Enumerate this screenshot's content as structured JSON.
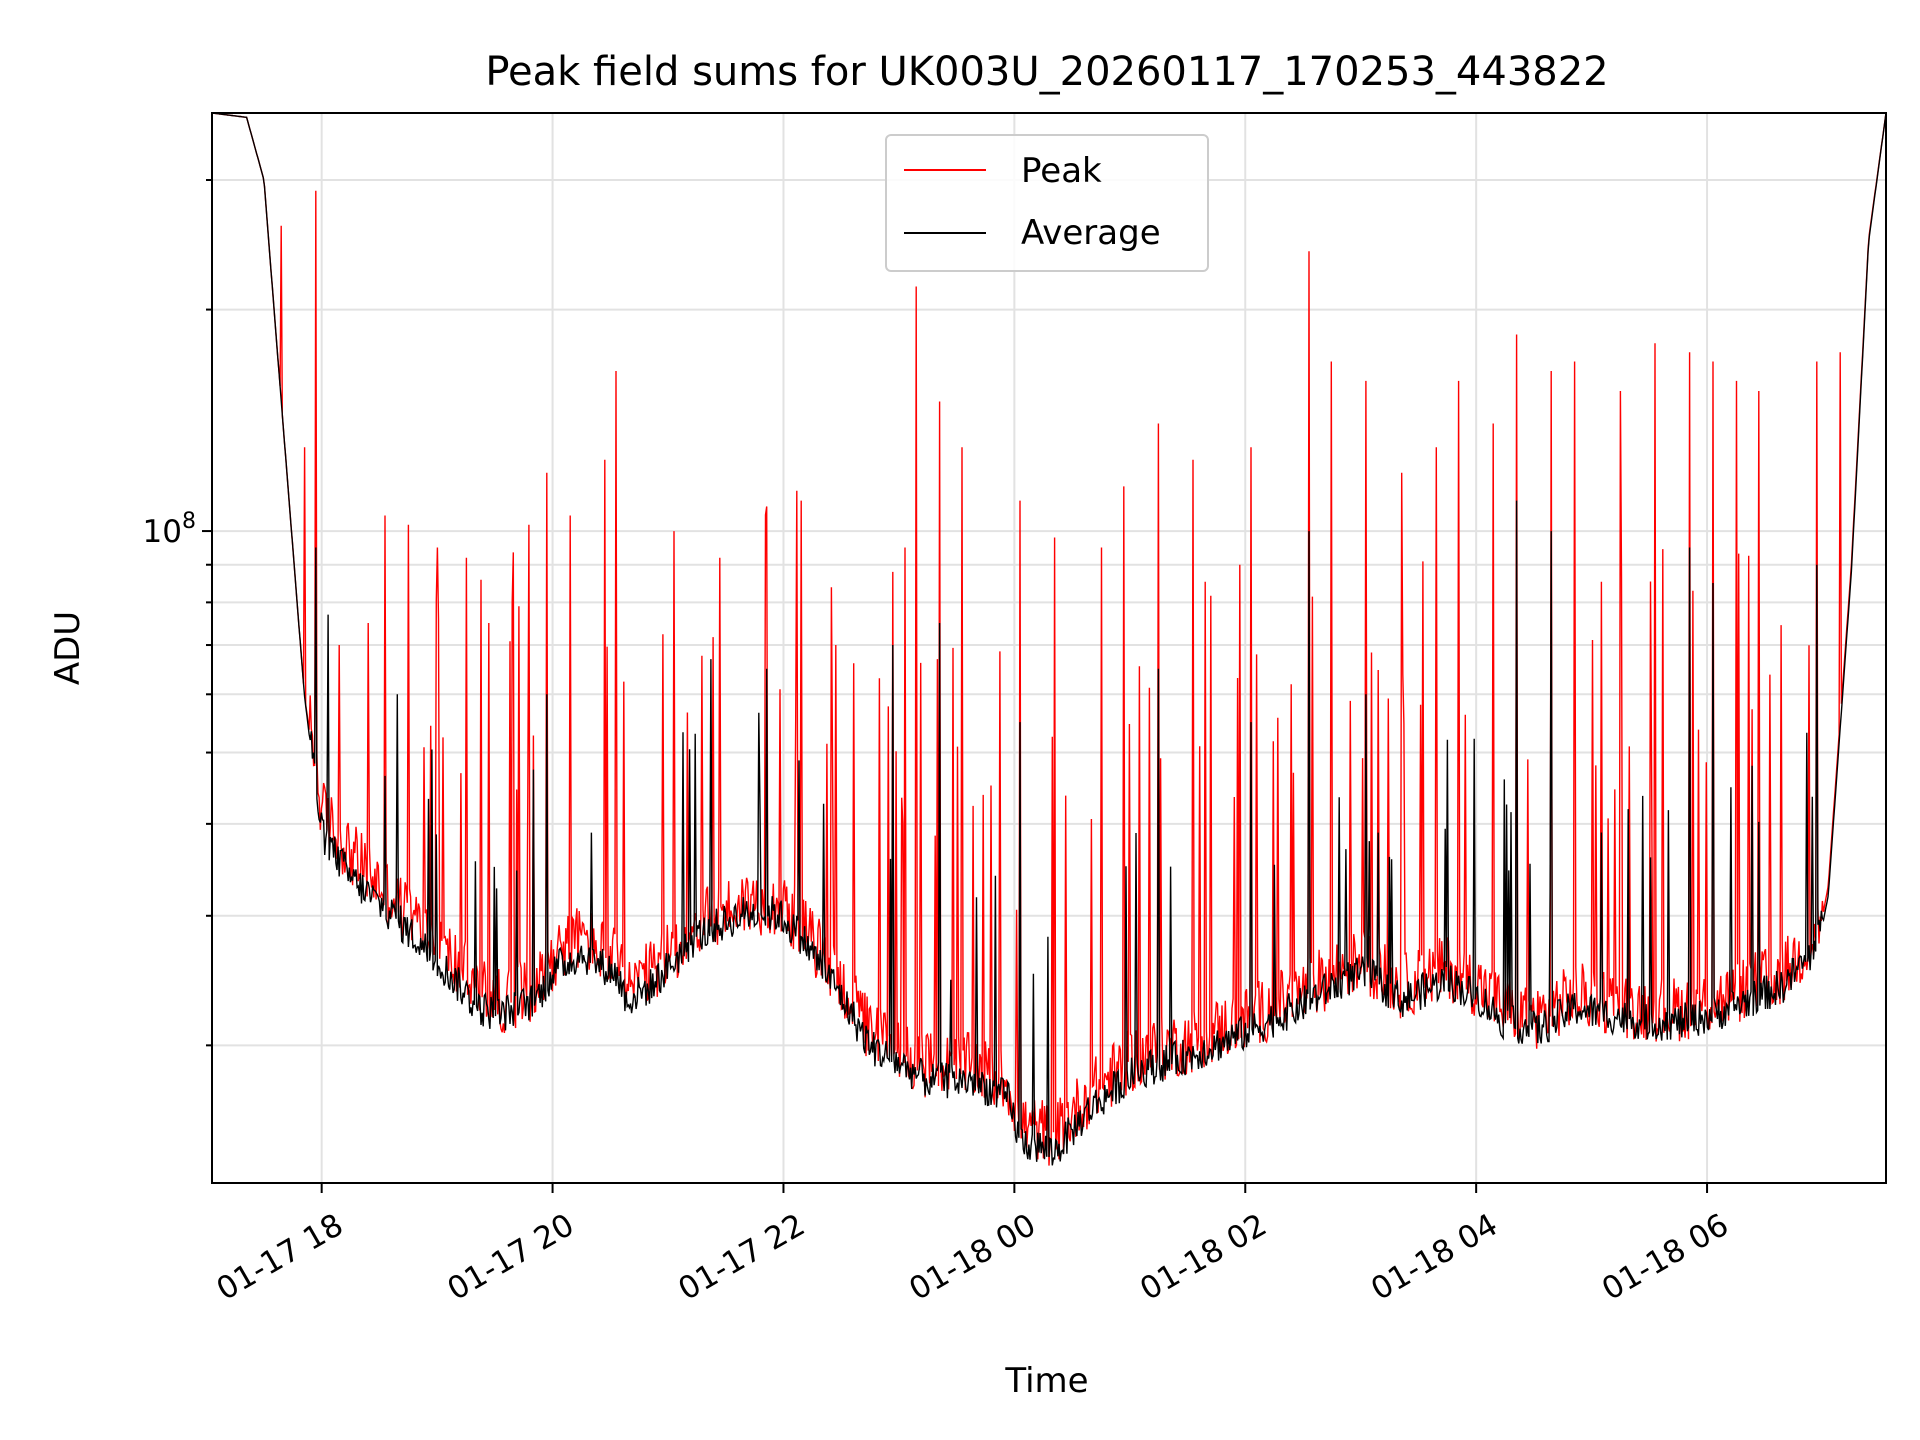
{
  "chart_data": {
    "type": "line",
    "title": "Peak field sums for UK003U_20260117_170253_443822",
    "xlabel": "Time",
    "ylabel": "ADU",
    "yscale": "log",
    "ylim": [
      13000000,
      370000000
    ],
    "xlim_hours": [
      0,
      14.5
    ],
    "x_ticks": [
      {
        "label": "01-17 18",
        "hour": 0.95
      },
      {
        "label": "01-17 20",
        "hour": 2.95
      },
      {
        "label": "01-17 22",
        "hour": 4.95
      },
      {
        "label": "01-18 00",
        "hour": 6.95
      },
      {
        "label": "01-18 02",
        "hour": 8.95
      },
      {
        "label": "01-18 04",
        "hour": 10.95
      },
      {
        "label": "01-18 06",
        "hour": 12.95
      }
    ],
    "y_major_ticks": [
      {
        "value": 100000000,
        "base": "10",
        "exp": "8"
      }
    ],
    "y_minor_ticks": [
      20000000,
      30000000,
      40000000,
      50000000,
      60000000,
      70000000,
      80000000,
      90000000,
      200000000,
      300000000
    ],
    "grid": true,
    "legend": {
      "position": "top-center"
    },
    "series": [
      {
        "name": "Peak",
        "color": "#ff0000",
        "baseline": [
          [
            0,
            370000000
          ],
          [
            0.3,
            365000000
          ],
          [
            0.45,
            300000000
          ],
          [
            0.6,
            150000000
          ],
          [
            0.8,
            60000000
          ],
          [
            0.95,
            40000000
          ],
          [
            1.2,
            35000000
          ],
          [
            1.6,
            30000000
          ],
          [
            2.0,
            26000000
          ],
          [
            2.3,
            23000000
          ],
          [
            2.5,
            22000000
          ],
          [
            2.8,
            23000000
          ],
          [
            3.0,
            26000000
          ],
          [
            3.2,
            27000000
          ],
          [
            3.5,
            25000000
          ],
          [
            3.6,
            23000000
          ],
          [
            3.8,
            24000000
          ],
          [
            4.2,
            28000000
          ],
          [
            4.6,
            30000000
          ],
          [
            4.9,
            30000000
          ],
          [
            5.1,
            28000000
          ],
          [
            5.4,
            24000000
          ],
          [
            5.7,
            20000000
          ],
          [
            6.2,
            18000000
          ],
          [
            6.6,
            18000000
          ],
          [
            6.9,
            17000000
          ],
          [
            7.0,
            15000000
          ],
          [
            7.3,
            14500000
          ],
          [
            7.6,
            16500000
          ],
          [
            8.0,
            18500000
          ],
          [
            8.5,
            19500000
          ],
          [
            9.0,
            21000000
          ],
          [
            9.4,
            22500000
          ],
          [
            9.8,
            24500000
          ],
          [
            10.0,
            25000000
          ],
          [
            10.3,
            23000000
          ],
          [
            10.7,
            24500000
          ],
          [
            11.0,
            23000000
          ],
          [
            11.2,
            21500000
          ],
          [
            11.5,
            21000000
          ],
          [
            11.8,
            22500000
          ],
          [
            12.1,
            22000000
          ],
          [
            12.4,
            21500000
          ],
          [
            12.7,
            21500000
          ],
          [
            13.0,
            22000000
          ],
          [
            13.3,
            23000000
          ],
          [
            13.6,
            24000000
          ],
          [
            13.9,
            27000000
          ],
          [
            14.0,
            33000000
          ],
          [
            14.2,
            90000000
          ],
          [
            14.35,
            250000000
          ],
          [
            14.5,
            370000000
          ]
        ],
        "spikes": [
          [
            0.6,
            260000000
          ],
          [
            0.8,
            130000000
          ],
          [
            0.9,
            290000000
          ],
          [
            1.1,
            70000000
          ],
          [
            1.35,
            75000000
          ],
          [
            1.5,
            105000000
          ],
          [
            1.7,
            102000000
          ],
          [
            1.95,
            95000000
          ],
          [
            2.2,
            92000000
          ],
          [
            2.4,
            75000000
          ],
          [
            2.6,
            80000000
          ],
          [
            2.75,
            102000000
          ],
          [
            2.9,
            120000000
          ],
          [
            3.1,
            105000000
          ],
          [
            3.4,
            125000000
          ],
          [
            3.5,
            165000000
          ],
          [
            4.0,
            100000000
          ],
          [
            4.4,
            92000000
          ],
          [
            4.8,
            108000000
          ],
          [
            5.1,
            110000000
          ],
          [
            5.4,
            70000000
          ],
          [
            5.9,
            88000000
          ],
          [
            6.0,
            95000000
          ],
          [
            6.1,
            215000000
          ],
          [
            6.3,
            150000000
          ],
          [
            6.5,
            130000000
          ],
          [
            7.0,
            110000000
          ],
          [
            7.3,
            98000000
          ],
          [
            7.7,
            95000000
          ],
          [
            7.9,
            115000000
          ],
          [
            8.2,
            140000000
          ],
          [
            8.5,
            125000000
          ],
          [
            8.9,
            90000000
          ],
          [
            9.0,
            130000000
          ],
          [
            9.5,
            240000000
          ],
          [
            9.7,
            170000000
          ],
          [
            10.0,
            160000000
          ],
          [
            10.3,
            120000000
          ],
          [
            10.6,
            130000000
          ],
          [
            10.8,
            160000000
          ],
          [
            11.1,
            140000000
          ],
          [
            11.3,
            185000000
          ],
          [
            11.6,
            165000000
          ],
          [
            11.8,
            170000000
          ],
          [
            12.2,
            155000000
          ],
          [
            12.5,
            180000000
          ],
          [
            12.8,
            175000000
          ],
          [
            13.0,
            170000000
          ],
          [
            13.2,
            160000000
          ],
          [
            13.4,
            155000000
          ],
          [
            13.9,
            170000000
          ],
          [
            14.1,
            175000000
          ]
        ]
      },
      {
        "name": "Average",
        "color": "#000000",
        "baseline": [
          [
            0,
            370000000
          ],
          [
            0.3,
            365000000
          ],
          [
            0.45,
            300000000
          ],
          [
            0.6,
            150000000
          ],
          [
            0.8,
            60000000
          ],
          [
            0.95,
            38000000
          ],
          [
            1.2,
            33000000
          ],
          [
            1.6,
            29000000
          ],
          [
            2.0,
            25000000
          ],
          [
            2.3,
            22000000
          ],
          [
            2.5,
            21500000
          ],
          [
            2.8,
            22500000
          ],
          [
            3.0,
            25000000
          ],
          [
            3.2,
            26000000
          ],
          [
            3.5,
            24500000
          ],
          [
            3.6,
            22500000
          ],
          [
            3.8,
            23500000
          ],
          [
            4.2,
            27500000
          ],
          [
            4.6,
            29500000
          ],
          [
            4.9,
            29500000
          ],
          [
            5.1,
            27500000
          ],
          [
            5.4,
            23500000
          ],
          [
            5.7,
            19500000
          ],
          [
            6.2,
            17500000
          ],
          [
            6.6,
            17500000
          ],
          [
            6.9,
            16500000
          ],
          [
            7.0,
            14500000
          ],
          [
            7.3,
            14000000
          ],
          [
            7.6,
            16000000
          ],
          [
            8.0,
            18000000
          ],
          [
            8.5,
            19000000
          ],
          [
            9.0,
            20500000
          ],
          [
            9.4,
            22000000
          ],
          [
            9.8,
            24000000
          ],
          [
            10.0,
            24500000
          ],
          [
            10.3,
            22500000
          ],
          [
            10.7,
            24000000
          ],
          [
            11.0,
            22500000
          ],
          [
            11.2,
            21000000
          ],
          [
            11.5,
            20500000
          ],
          [
            11.8,
            22000000
          ],
          [
            12.1,
            21500000
          ],
          [
            12.4,
            21000000
          ],
          [
            12.7,
            21000000
          ],
          [
            13.0,
            21500000
          ],
          [
            13.3,
            22500000
          ],
          [
            13.6,
            23500000
          ],
          [
            13.9,
            26500000
          ],
          [
            14.0,
            32000000
          ],
          [
            14.2,
            88000000
          ],
          [
            14.35,
            248000000
          ],
          [
            14.5,
            370000000
          ]
        ],
        "spikes": [
          [
            0.9,
            95000000
          ],
          [
            1.6,
            60000000
          ],
          [
            2.9,
            60000000
          ],
          [
            4.8,
            65000000
          ],
          [
            5.9,
            70000000
          ],
          [
            6.3,
            75000000
          ],
          [
            7.0,
            55000000
          ],
          [
            8.2,
            65000000
          ],
          [
            9.0,
            55000000
          ],
          [
            9.5,
            100000000
          ],
          [
            10.0,
            60000000
          ],
          [
            11.3,
            110000000
          ],
          [
            11.6,
            100000000
          ],
          [
            12.8,
            95000000
          ],
          [
            13.0,
            85000000
          ],
          [
            13.9,
            90000000
          ]
        ]
      }
    ]
  }
}
